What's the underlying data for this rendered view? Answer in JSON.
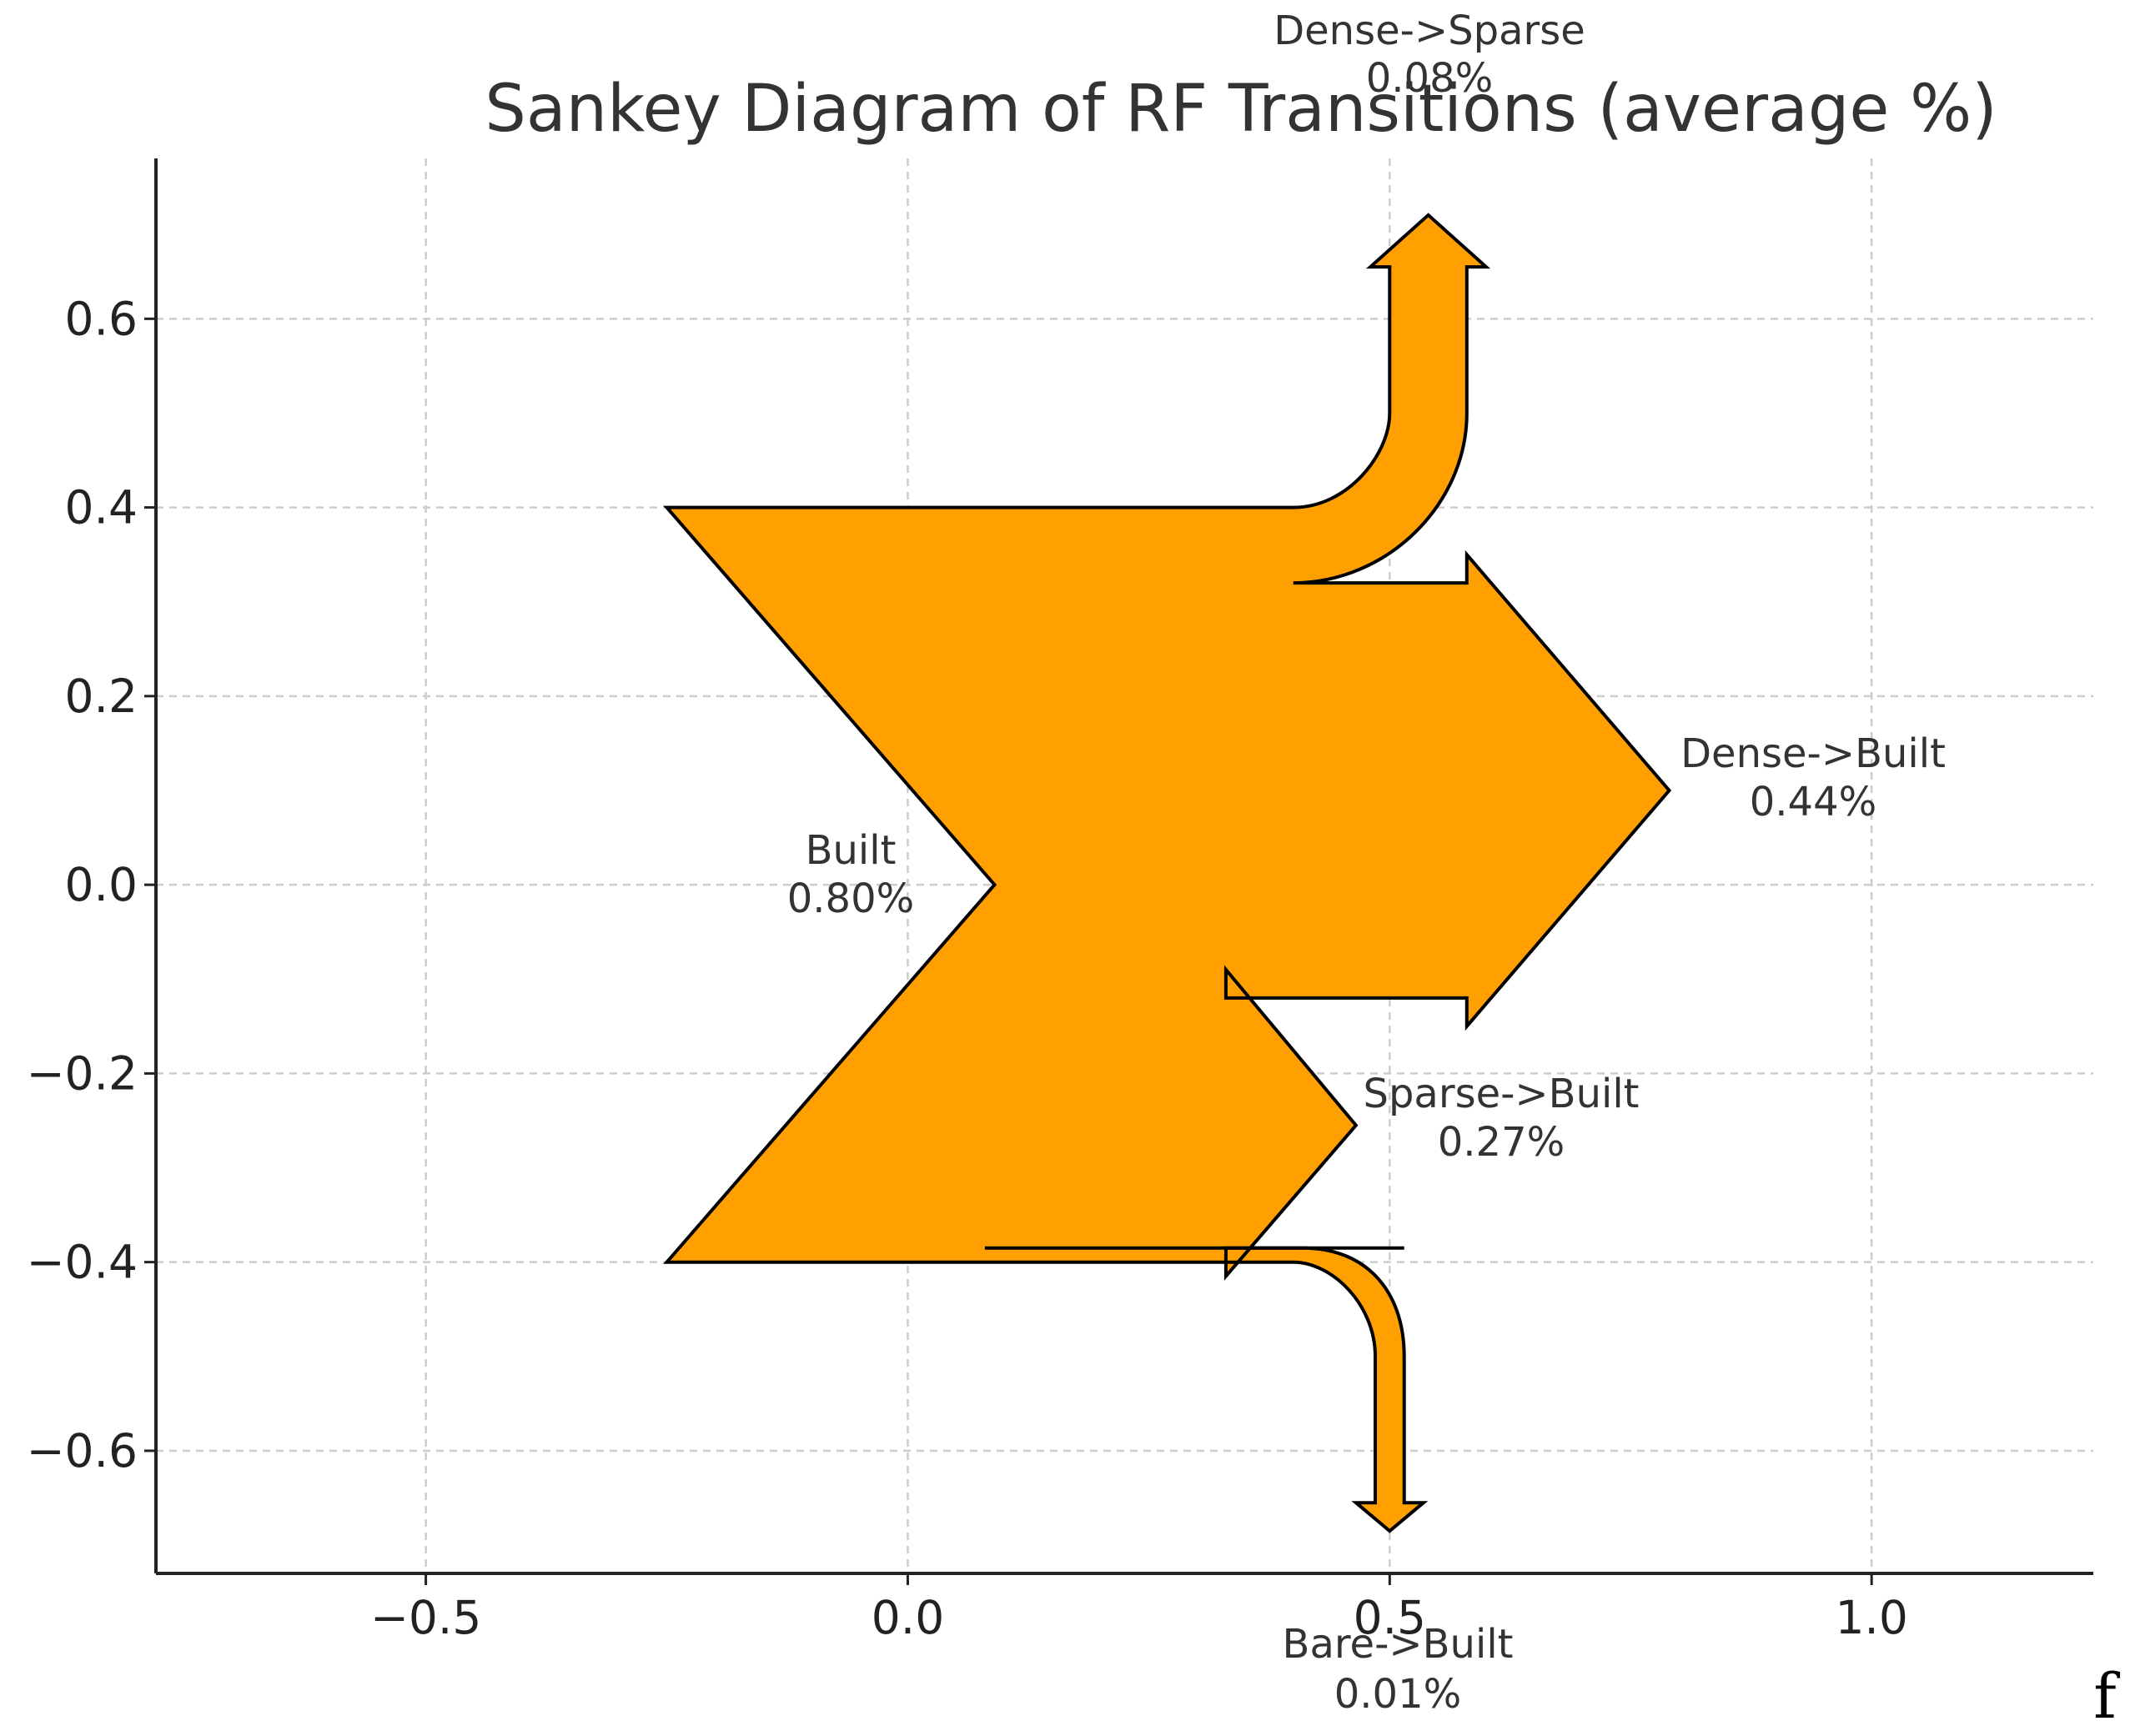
{
  "chart_data": {
    "type": "sankey",
    "title": "Sankey Diagram of RF Transitions (average %)",
    "xlim": [
      -0.78,
      1.23
    ],
    "ylim": [
      -0.73,
      0.77
    ],
    "xticks": [
      {
        "value": -0.5,
        "label": "−0.5"
      },
      {
        "value": 0.0,
        "label": "0.0"
      },
      {
        "value": 0.5,
        "label": "0.5"
      },
      {
        "value": 1.0,
        "label": "1.0"
      }
    ],
    "yticks": [
      {
        "value": 0.6,
        "label": "0.6"
      },
      {
        "value": 0.4,
        "label": "0.4"
      },
      {
        "value": 0.2,
        "label": "0.2"
      },
      {
        "value": 0.0,
        "label": "0.0"
      },
      {
        "value": -0.2,
        "label": "−0.2"
      },
      {
        "value": -0.4,
        "label": "−0.4"
      },
      {
        "value": -0.6,
        "label": "−0.6"
      }
    ],
    "grid": true,
    "fill_color": "#ffa000",
    "edge_color": "#000000",
    "inflow": {
      "name": "Built",
      "value_label": "0.80%",
      "value": 0.8
    },
    "outflows": [
      {
        "name": "Dense->Sparse",
        "value_label": "0.08%",
        "value": 0.08
      },
      {
        "name": "Dense->Built",
        "value_label": "0.44%",
        "value": 0.44
      },
      {
        "name": "Sparse->Built",
        "value_label": "0.27%",
        "value": 0.27
      },
      {
        "name": "Bare->Built",
        "value_label": "0.01%",
        "value": 0.01
      }
    ]
  },
  "corner_mark": "f"
}
